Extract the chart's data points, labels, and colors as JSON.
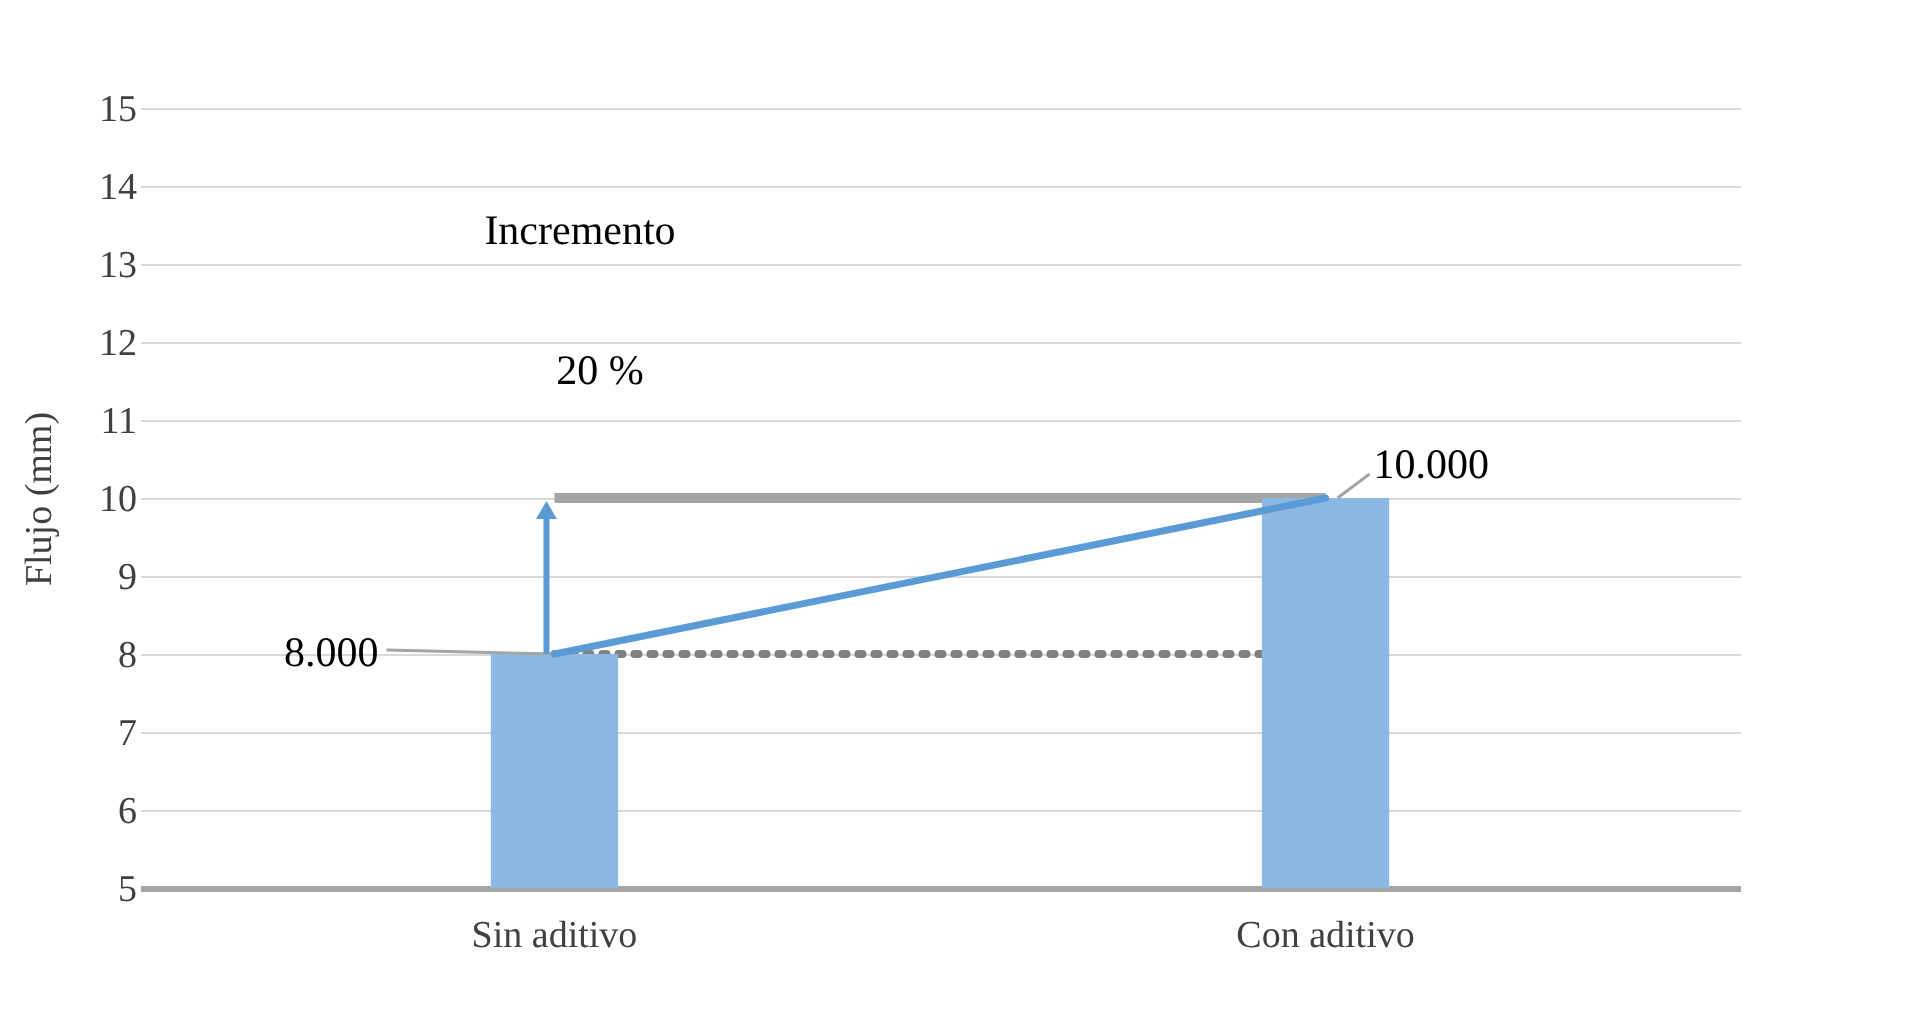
{
  "chart_data": {
    "type": "bar",
    "ylabel": "Flujo (mm)",
    "categories": [
      "Sin aditivo",
      "Con aditivo"
    ],
    "series": [
      {
        "color": "#8db8e3",
        "values": [
          8,
          10
        ],
        "value_labels": [
          "8.000",
          "10.000"
        ]
      },
      {
        "type": "line",
        "color": "#5b9bd5",
        "values": [
          8,
          10
        ]
      }
    ],
    "ylim": [
      5,
      15
    ],
    "yticks": [
      5,
      6,
      7,
      8,
      9,
      10,
      11,
      12,
      13,
      14,
      15
    ],
    "grid": "y",
    "ref_lines": [
      {
        "axis": "y",
        "value": 10,
        "color": "#a5a5a5",
        "line_style": "solid"
      },
      {
        "axis": "y",
        "value": 8,
        "color": "#808080",
        "line_style": "dotted"
      }
    ],
    "annotations": [
      "Incremento",
      "20 %"
    ]
  }
}
